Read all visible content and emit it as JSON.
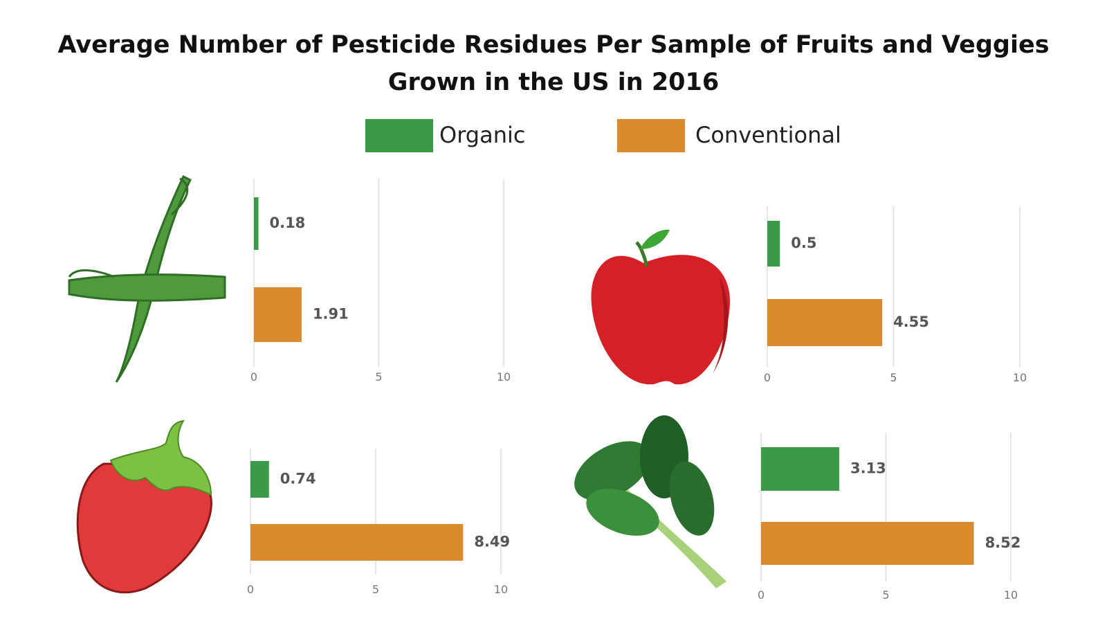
{
  "title": "Average Number of Pesticide Residues Per Sample of Fruits and Veggies Grown in the US in 2016",
  "legend": [
    {
      "name": "Organic",
      "color": "#3a9a47"
    },
    {
      "name": "Conventional",
      "color": "#db8a2e"
    }
  ],
  "chart_data": [
    {
      "type": "bar",
      "values": [
        0.18,
        1.91
      ],
      "xlim": [
        0,
        10
      ],
      "xticks": [
        0,
        5,
        10
      ],
      "grid": true
    },
    {
      "type": "bar",
      "values": [
        0.5,
        4.55
      ],
      "xlim": [
        0,
        10
      ],
      "xticks": [
        0,
        5,
        10
      ],
      "grid": true
    },
    {
      "type": "bar",
      "values": [
        0.74,
        8.49
      ],
      "xlim": [
        0,
        10
      ],
      "xticks": [
        0,
        5,
        10
      ],
      "grid": true
    },
    {
      "type": "bar",
      "values": [
        3.13,
        8.52
      ],
      "xlim": [
        0,
        10
      ],
      "xticks": [
        0,
        5,
        10
      ],
      "grid": true
    }
  ]
}
